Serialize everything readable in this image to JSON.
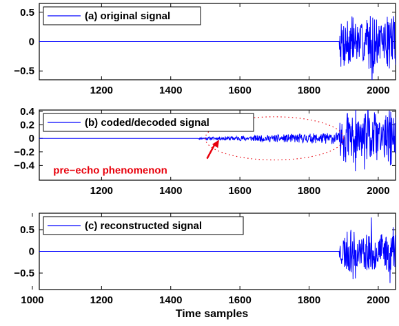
{
  "chart_data": [
    {
      "type": "line",
      "legend": "(a) original signal",
      "legend_placement": "top-left",
      "xlim": [
        1020,
        2050
      ],
      "ylim": [
        -0.65,
        0.65
      ],
      "xticks": [
        1200,
        1400,
        1600,
        1800,
        2000
      ],
      "yticks": [
        0.5,
        0,
        -0.5
      ],
      "yticklabels": [
        "0.5",
        "0",
        "−0.5"
      ],
      "series_color": "#0000ff",
      "signal": {
        "quiet_until": 1888,
        "pre_echo_start": null,
        "pre_echo_amp": 0,
        "burst_amp": 0.48,
        "seed": 7
      }
    },
    {
      "type": "line",
      "legend": "(b) coded/decoded signal",
      "legend_placement": "top-left",
      "xlim": [
        1020,
        2050
      ],
      "ylim": [
        -0.62,
        0.42
      ],
      "xticks": [
        1200,
        1400,
        1600,
        1800,
        2000
      ],
      "yticks": [
        0.4,
        0.2,
        0,
        -0.2,
        -0.4
      ],
      "yticklabels": [
        "0.4",
        "0.2",
        "0",
        "−0.2",
        "−0.4"
      ],
      "series_color": "#0000ff",
      "annotation": {
        "text": "pre−echo phenomenon",
        "color": "#e8000b",
        "target": [
          1540,
          -0.02
        ],
        "text_at": [
          1180,
          -0.47
        ]
      },
      "ellipse": {
        "center": [
          1700,
          0
        ],
        "rx": 200,
        "ry": 0.32,
        "color": "#e8000b",
        "dotted": true
      },
      "signal": {
        "quiet_until": 1888,
        "pre_echo_start": 1480,
        "pre_echo_amp": 0.06,
        "burst_amp": 0.42,
        "seed": 11
      }
    },
    {
      "type": "line",
      "legend": "(c) reconstructed signal",
      "legend_placement": "top-left",
      "xlim": [
        1020,
        2050
      ],
      "ylim": [
        -0.88,
        0.88
      ],
      "xticks": [
        1000,
        1200,
        1400,
        1600,
        1800,
        2000
      ],
      "yticks": [
        0.5,
        0,
        -0.5
      ],
      "yticklabels": [
        "0.5",
        "0",
        "−0.5"
      ],
      "xlabel": "Time samples",
      "series_color": "#0000ff",
      "signal": {
        "quiet_until": 1888,
        "pre_echo_start": null,
        "pre_echo_amp": 0,
        "burst_amp": 0.5,
        "seed": 23
      }
    }
  ]
}
